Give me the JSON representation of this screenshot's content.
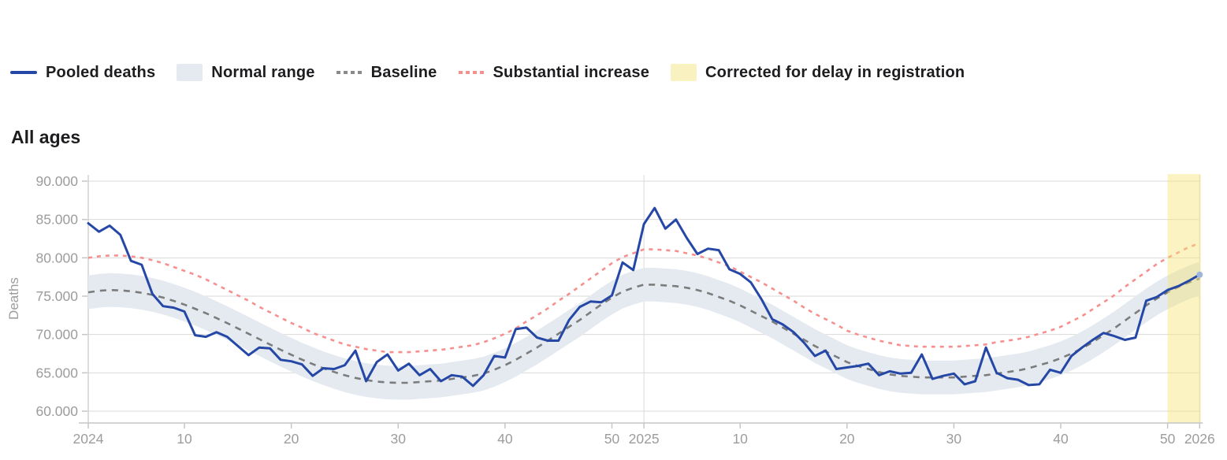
{
  "section": {
    "title": "All ages"
  },
  "legend": {
    "items": [
      {
        "label": "Pooled deaths",
        "swatch": "line",
        "color": "#2547a6"
      },
      {
        "label": "Normal range",
        "swatch": "square",
        "color": "#e4eaf0"
      },
      {
        "label": "Baseline",
        "swatch": "dots",
        "color": "#8a8a8a"
      },
      {
        "label": "Substantial increase",
        "swatch": "dots",
        "color": "#f5908f"
      },
      {
        "label": "Corrected for delay in registration",
        "swatch": "square",
        "color": "#faf1c0"
      }
    ]
  },
  "colors": {
    "pooled": "#2547a6",
    "baseline": "#7c7c7c",
    "substantial": "#f5908f",
    "normal_range_fill": "#e4eaf0",
    "corrected_fill": "rgba(247,228,120,0.45)",
    "grid": "#dadada",
    "axis": "#c6c6c6",
    "tick_text": "#9c9c9c",
    "end_dot": "#9db4e0"
  },
  "chart_data": {
    "type": "line",
    "title": "All ages",
    "xlabel": "",
    "ylabel": "Deaths",
    "x_unit": "ISO week (2024-W01 to 2026-W01)",
    "ylim": [
      60000,
      90000
    ],
    "grid": "horizontal",
    "legend_position": "top",
    "y_ticks": [
      {
        "label": "90.000",
        "value": 90000
      },
      {
        "label": "85.000",
        "value": 85000
      },
      {
        "label": "80.000",
        "value": 80000
      },
      {
        "label": "75.000",
        "value": 75000
      },
      {
        "label": "70.000",
        "value": 70000
      },
      {
        "label": "65.000",
        "value": 65000
      },
      {
        "label": "60.000",
        "value": 60000
      }
    ],
    "x_ticks": [
      {
        "label": "2024",
        "week": 1
      },
      {
        "label": "10",
        "week": 10
      },
      {
        "label": "20",
        "week": 20
      },
      {
        "label": "30",
        "week": 30
      },
      {
        "label": "40",
        "week": 40
      },
      {
        "label": "50",
        "week": 50
      },
      {
        "label": "2025",
        "week": 53
      },
      {
        "label": "10",
        "week": 62
      },
      {
        "label": "20",
        "week": 72
      },
      {
        "label": "30",
        "week": 82
      },
      {
        "label": "40",
        "week": 92
      },
      {
        "label": "50",
        "week": 102
      },
      {
        "label": "2026",
        "week": 105
      }
    ],
    "series": [
      {
        "name": "Pooled deaths",
        "values": [
          84500,
          83400,
          84200,
          83000,
          79600,
          79100,
          75300,
          73700,
          73500,
          73000,
          69900,
          69700,
          70300,
          69700,
          68500,
          67300,
          68300,
          68200,
          66700,
          66500,
          66100,
          64600,
          65600,
          65500,
          66000,
          67900,
          63900,
          66400,
          67400,
          65300,
          66200,
          64700,
          65500,
          63900,
          64700,
          64500,
          63300,
          64700,
          67200,
          67000,
          70700,
          70900,
          69600,
          69200,
          69200,
          71900,
          73600,
          74300,
          74200,
          75100,
          79400,
          78400,
          84400,
          86500,
          83800,
          85000,
          82600,
          80500,
          81200,
          81000,
          78500,
          77900,
          76800,
          74600,
          72000,
          71300,
          70300,
          68900,
          67200,
          67900,
          65500,
          65700,
          65900,
          66200,
          64700,
          65200,
          64900,
          65000,
          67400,
          64200,
          64600,
          64900,
          63500,
          63900,
          68300,
          65000,
          64300,
          64100,
          63400,
          63500,
          65400,
          65000,
          67200,
          68300,
          69300,
          70200,
          69800,
          69300,
          69600,
          74400,
          74900,
          75800,
          76300,
          77000,
          77800
        ]
      },
      {
        "name": "Baseline",
        "values": [
          75500,
          75700,
          75800,
          75760,
          75640,
          75440,
          75160,
          74810,
          74380,
          73900,
          73360,
          72780,
          72140,
          71490,
          70800,
          70100,
          69400,
          68700,
          68010,
          67360,
          66720,
          66140,
          65600,
          65120,
          64690,
          64340,
          64060,
          63860,
          63740,
          63700,
          63700,
          63800,
          63900,
          64000,
          64200,
          64400,
          64600,
          64900,
          65400,
          66000,
          66700,
          67500,
          68300,
          69200,
          70100,
          71000,
          71900,
          72900,
          73900,
          74800,
          75600,
          76100,
          76500,
          76500,
          76400,
          76300,
          76100,
          75800,
          75400,
          74900,
          74400,
          73800,
          73100,
          72400,
          71700,
          70900,
          70100,
          69300,
          68500,
          67800,
          67100,
          66400,
          65900,
          65500,
          65100,
          64800,
          64600,
          64500,
          64400,
          64400,
          64400,
          64400,
          64500,
          64600,
          64700,
          64900,
          65100,
          65300,
          65600,
          66000,
          66400,
          66900,
          67500,
          68200,
          69000,
          69900,
          70800,
          71800,
          72800,
          73800,
          74700,
          75500,
          76200,
          76800,
          77300
        ]
      },
      {
        "name": "Substantial increase",
        "values": [
          80000,
          80200,
          80300,
          80300,
          80200,
          80000,
          79700,
          79300,
          78800,
          78300,
          77800,
          77200,
          76500,
          75800,
          75100,
          74400,
          73600,
          72900,
          72200,
          71500,
          70900,
          70200,
          69700,
          69200,
          68700,
          68400,
          68100,
          67900,
          67700,
          67700,
          67700,
          67800,
          67900,
          68000,
          68200,
          68400,
          68600,
          69000,
          69500,
          70100,
          70800,
          71700,
          72500,
          73400,
          74400,
          75300,
          76300,
          77300,
          78300,
          79300,
          80100,
          80600,
          81100,
          81100,
          81000,
          80900,
          80600,
          80300,
          79900,
          79400,
          78900,
          78200,
          77500,
          76800,
          76000,
          75200,
          74400,
          73500,
          72700,
          72000,
          71300,
          70500,
          70000,
          69600,
          69200,
          68900,
          68600,
          68500,
          68400,
          68400,
          68400,
          68400,
          68500,
          68600,
          68700,
          69000,
          69200,
          69400,
          69700,
          70100,
          70500,
          71000,
          71700,
          72400,
          73300,
          74200,
          75100,
          76200,
          77200,
          78200,
          79200,
          80000,
          80700,
          81400,
          81900
        ]
      }
    ],
    "normal_range": {
      "center_series": "Baseline",
      "halfwidth": 2200
    },
    "corrected_region": {
      "start_week": 102,
      "end_week": 105,
      "label": "Corrected for delay in registration"
    }
  }
}
